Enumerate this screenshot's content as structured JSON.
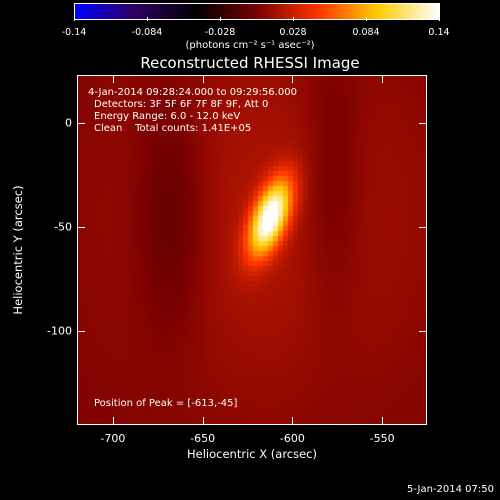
{
  "colorbar": {
    "ticks": [
      "-0.14",
      "-0.084",
      "-0.028",
      "0.028",
      "0.084",
      "0.14"
    ],
    "units": "(photons cm⁻² s⁻¹ asec⁻²)",
    "colormap": [
      "#0000ff",
      "#2d0060",
      "#000000",
      "#7a0000",
      "#ff3300",
      "#ffcc00",
      "#ffffff"
    ]
  },
  "chart_data": {
    "type": "heatmap",
    "title": "Reconstructed RHESSI Image",
    "xlabel": "Heliocentric X (arcsec)",
    "ylabel": "Heliocentric Y (arcsec)",
    "xlim": [
      -720,
      -525
    ],
    "ylim": [
      -145,
      23
    ],
    "xticks": [
      "-700",
      "-650",
      "-600",
      "-550"
    ],
    "yticks": [
      "0",
      "-50",
      "-100"
    ],
    "xtick_values": [
      -700,
      -650,
      -600,
      -550
    ],
    "ytick_values": [
      0,
      -50,
      -100
    ],
    "peak_value": 0.14,
    "peak_position": [
      -613,
      -45
    ],
    "source_extent_arcsec": [
      14,
      30
    ],
    "source_tilt_deg": 25,
    "annotations": {
      "time_range": "4-Jan-2014 09:28:24.000 to 09:29:56.000",
      "detectors": "Detectors: 3F 5F 6F 7F 8F 9F, Att 0",
      "energy": "Energy Range: 6.0 - 12.0 keV",
      "clean": "Clean    Total counts: 1.41E+05",
      "peak": "Position of Peak = [-613,-45]"
    }
  },
  "footer": {
    "timestamp": "5-Jan-2014 07:50"
  }
}
